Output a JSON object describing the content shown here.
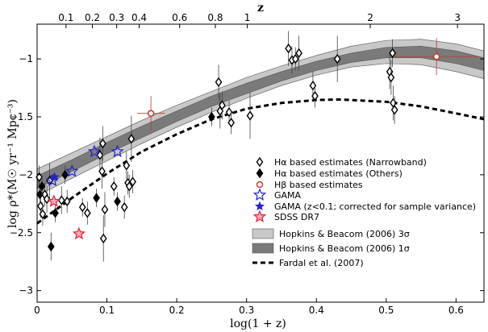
{
  "chart_data": {
    "type": "scatter",
    "title": "",
    "xlabel": "log(1 + z)",
    "ylabel": "log ρ*(M☉ yr⁻¹ Mpc⁻³)",
    "top_axis_label": "z",
    "xlim": [
      0,
      0.64
    ],
    "ylim": [
      -3.1,
      -0.7
    ],
    "x_ticks": [
      0,
      0.1,
      0.2,
      0.3,
      0.4,
      0.5,
      0.6
    ],
    "x_tick_labels": [
      "0",
      "0.1",
      "0.2",
      "0.3",
      "0.4",
      "0.5",
      "0.6"
    ],
    "y_ticks": [
      -3,
      -2.5,
      -2,
      -1.5,
      -1
    ],
    "y_tick_labels": [
      "−3",
      "−2.5",
      "−2",
      "−1.5",
      "−1"
    ],
    "top_ticks": [
      0.1,
      0.2,
      0.3,
      0.4,
      0.6,
      0.8,
      1,
      2,
      3
    ],
    "top_tick_labels": [
      "0.1",
      "0.2",
      "0.3",
      "0.4",
      "0.6",
      "0.8",
      "1",
      "2",
      "3"
    ],
    "legend_position": "right-center",
    "legend": [
      {
        "label": "Hα based estimates (Narrowband)",
        "marker": "open-diamond"
      },
      {
        "label": "Hα based estimates (Others)",
        "marker": "filled-diamond"
      },
      {
        "label": "Hβ based estimates",
        "marker": "open-circle"
      },
      {
        "label": "GAMA",
        "marker": "open-star"
      },
      {
        "label": "GAMA (z<0.1; corrected for sample variance)",
        "marker": "filled-star"
      },
      {
        "label": "SDSS DR7",
        "marker": "red-star"
      },
      {
        "label": "Hopkins & Beacom (2006) 3σ",
        "marker": "band-light"
      },
      {
        "label": "Hopkins & Beacom (2006) 1σ",
        "marker": "band-dark"
      },
      {
        "label": "Fardal et al. (2007)",
        "marker": "dashed-line"
      }
    ],
    "colors": {
      "band_3sigma": "#c8c8c8",
      "band_1sigma": "#7a7a7a",
      "gama": "#2424cc",
      "sdss": "#e0243a",
      "hbeta": "#c0392b"
    },
    "series": [
      {
        "name": "Hopkins & Beacom (2006) 3σ",
        "kind": "band",
        "x": [
          0,
          0.05,
          0.1,
          0.15,
          0.2,
          0.25,
          0.3,
          0.35,
          0.4,
          0.45,
          0.5,
          0.55,
          0.6,
          0.64
        ],
        "lower": [
          -2.18,
          -2.03,
          -1.88,
          -1.73,
          -1.59,
          -1.46,
          -1.34,
          -1.23,
          -1.14,
          -1.07,
          -1.04,
          -1.05,
          -1.11,
          -1.17
        ],
        "upper": [
          -1.95,
          -1.81,
          -1.67,
          -1.53,
          -1.4,
          -1.28,
          -1.16,
          -1.06,
          -0.97,
          -0.89,
          -0.84,
          -0.83,
          -0.87,
          -0.93
        ]
      },
      {
        "name": "Hopkins & Beacom (2006) 1σ",
        "kind": "band",
        "x": [
          0,
          0.05,
          0.1,
          0.15,
          0.2,
          0.25,
          0.3,
          0.35,
          0.4,
          0.45,
          0.5,
          0.55,
          0.6,
          0.64
        ],
        "lower": [
          -2.12,
          -1.97,
          -1.82,
          -1.68,
          -1.54,
          -1.41,
          -1.3,
          -1.19,
          -1.1,
          -1.03,
          -0.99,
          -0.99,
          -1.04,
          -1.1
        ],
        "upper": [
          -2.01,
          -1.87,
          -1.72,
          -1.58,
          -1.45,
          -1.32,
          -1.21,
          -1.11,
          -1.02,
          -0.95,
          -0.9,
          -0.89,
          -0.93,
          -0.99
        ]
      },
      {
        "name": "Fardal et al. (2007)",
        "kind": "line",
        "x": [
          0,
          0.05,
          0.1,
          0.15,
          0.2,
          0.25,
          0.3,
          0.35,
          0.4,
          0.43,
          0.45,
          0.5,
          0.55,
          0.6,
          0.64
        ],
        "y": [
          -2.42,
          -2.2,
          -1.99,
          -1.8,
          -1.65,
          -1.52,
          -1.43,
          -1.38,
          -1.355,
          -1.35,
          -1.355,
          -1.37,
          -1.41,
          -1.47,
          -1.52
        ]
      },
      {
        "name": "Hα based estimates (Narrowband)",
        "kind": "points",
        "marker": "open-diamond",
        "points": [
          {
            "x": 0.003,
            "y": -2.02,
            "err": 0.1
          },
          {
            "x": 0.005,
            "y": -2.27,
            "err": 0.1
          },
          {
            "x": 0.008,
            "y": -2.34,
            "err": 0.1
          },
          {
            "x": 0.011,
            "y": -2.17,
            "err": 0.1
          },
          {
            "x": 0.014,
            "y": -2.21,
            "err": 0.12
          },
          {
            "x": 0.018,
            "y": -2.05,
            "err": 0.15
          },
          {
            "x": 0.035,
            "y": -2.22,
            "err": 0.12
          },
          {
            "x": 0.043,
            "y": -2.23,
            "err": 0.1
          },
          {
            "x": 0.065,
            "y": -2.28,
            "err": 0.08
          },
          {
            "x": 0.072,
            "y": -2.33,
            "err": 0.1
          },
          {
            "x": 0.09,
            "y": -1.83,
            "err": 0.15
          },
          {
            "x": 0.093,
            "y": -1.97,
            "err": 0.15
          },
          {
            "x": 0.094,
            "y": -1.73,
            "err": 0.15
          },
          {
            "x": 0.095,
            "y": -2.55,
            "err": 0.2
          },
          {
            "x": 0.097,
            "y": -2.3,
            "err": 0.15
          },
          {
            "x": 0.11,
            "y": -2.1,
            "err": 0.08
          },
          {
            "x": 0.125,
            "y": -2.28,
            "err": 0.1
          },
          {
            "x": 0.128,
            "y": -1.92,
            "err": 0.12
          },
          {
            "x": 0.13,
            "y": -2.07,
            "err": 0.1
          },
          {
            "x": 0.132,
            "y": -2.1,
            "err": 0.1
          },
          {
            "x": 0.135,
            "y": -1.69,
            "err": 0.2
          },
          {
            "x": 0.137,
            "y": -2.06,
            "err": 0.1
          },
          {
            "x": 0.26,
            "y": -1.2,
            "err": 0.15
          },
          {
            "x": 0.262,
            "y": -1.45,
            "err": 0.15
          },
          {
            "x": 0.265,
            "y": -1.4,
            "err": 0.12
          },
          {
            "x": 0.275,
            "y": -1.46,
            "err": 0.1
          },
          {
            "x": 0.278,
            "y": -1.55,
            "err": 0.1
          },
          {
            "x": 0.305,
            "y": -1.49,
            "err": 0.2
          },
          {
            "x": 0.36,
            "y": -0.91,
            "err": 0.15
          },
          {
            "x": 0.365,
            "y": -1.01,
            "err": 0.12
          },
          {
            "x": 0.37,
            "y": -1.0,
            "err": 0.1
          },
          {
            "x": 0.375,
            "y": -0.95,
            "err": 0.15
          },
          {
            "x": 0.395,
            "y": -1.23,
            "err": 0.12
          },
          {
            "x": 0.398,
            "y": -1.32,
            "err": 0.1
          },
          {
            "x": 0.43,
            "y": -1.0,
            "err": 0.2
          },
          {
            "x": 0.505,
            "y": -1.11,
            "err": 0.15
          },
          {
            "x": 0.507,
            "y": -1.16,
            "err": 0.15
          },
          {
            "x": 0.509,
            "y": -0.95,
            "err": 0.12
          },
          {
            "x": 0.51,
            "y": -1.38,
            "err": 0.15
          },
          {
            "x": 0.512,
            "y": -1.44,
            "err": 0.12
          }
        ]
      },
      {
        "name": "Hα based estimates (Others)",
        "kind": "points",
        "marker": "filled-diamond",
        "points": [
          {
            "x": 0.004,
            "y": -2.17,
            "err": 0.08
          },
          {
            "x": 0.007,
            "y": -2.1,
            "err": 0.08
          },
          {
            "x": 0.02,
            "y": -2.62,
            "err": 0.12
          },
          {
            "x": 0.026,
            "y": -2.33,
            "err": 0.08
          },
          {
            "x": 0.04,
            "y": -2.0,
            "err": 0.08
          },
          {
            "x": 0.085,
            "y": -2.2,
            "err": 0.08
          },
          {
            "x": 0.115,
            "y": -2.23,
            "err": 0.08
          },
          {
            "x": 0.25,
            "y": -1.5,
            "err": 0.08
          }
        ]
      },
      {
        "name": "Hβ based estimates",
        "kind": "points",
        "marker": "open-circle",
        "points": [
          {
            "x": 0.163,
            "y": -1.47,
            "err": 0.15,
            "xerr": 0.02
          },
          {
            "x": 0.572,
            "y": -0.98,
            "err": 0.16,
            "xerr": 0.06
          }
        ]
      },
      {
        "name": "GAMA",
        "kind": "points",
        "marker": "open-star",
        "points": [
          {
            "x": 0.022,
            "y": -2.05
          },
          {
            "x": 0.05,
            "y": -1.97
          },
          {
            "x": 0.082,
            "y": -1.8
          },
          {
            "x": 0.115,
            "y": -1.8
          }
        ]
      },
      {
        "name": "GAMA (z<0.1; corrected for sample variance)",
        "kind": "points",
        "marker": "filled-star",
        "points": [
          {
            "x": 0.025,
            "y": -2.02
          }
        ]
      },
      {
        "name": "SDSS DR7",
        "kind": "points",
        "marker": "red-star",
        "points": [
          {
            "x": 0.024,
            "y": -2.23
          },
          {
            "x": 0.06,
            "y": -2.51
          }
        ]
      }
    ]
  }
}
